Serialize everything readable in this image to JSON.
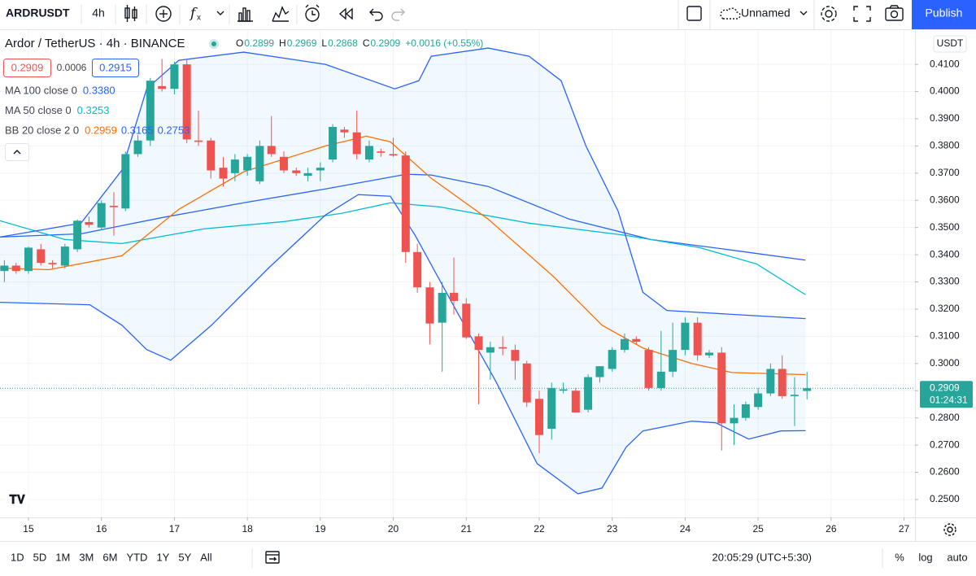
{
  "toolbar": {
    "symbol": "ARDRUSDT",
    "interval": "4h",
    "layout_name": "Unnamed",
    "publish": "Publish"
  },
  "bottom_bar": {
    "ranges": [
      "1D",
      "5D",
      "1M",
      "3M",
      "6M",
      "YTD",
      "1Y",
      "5Y",
      "All"
    ],
    "clock": "20:05:29 (UTC+5:30)",
    "percent": "%",
    "log": "log",
    "auto": "auto"
  },
  "chart_data": {
    "type": "candlestick",
    "title": "Ardor / TetherUS · 4h · BINANCE",
    "ohlc": [
      {
        "key": "O",
        "value": "0.2899"
      },
      {
        "key": "H",
        "value": "0.2969"
      },
      {
        "key": "L",
        "value": "0.2868"
      },
      {
        "key": "C",
        "value": "0.2909"
      }
    ],
    "change": "+0.0016 (+0.55%)",
    "bid": "0.2909",
    "spread": "0.0006",
    "ask": "0.2915",
    "currency": "USDT",
    "last_price": 0.2909,
    "countdown": "01:24:31",
    "up_color": "#26a69a",
    "down_color": "#ef5350",
    "x": [
      14.67,
      14.83,
      15,
      15.17,
      15.33,
      15.5,
      15.67,
      15.83,
      16,
      16.17,
      16.33,
      16.5,
      16.67,
      16.83,
      17,
      17.17,
      17.33,
      17.5,
      17.67,
      17.83,
      18,
      18.17,
      18.33,
      18.5,
      18.67,
      18.83,
      19,
      19.17,
      19.33,
      19.5,
      19.67,
      19.83,
      20,
      20.17,
      20.33,
      20.5,
      20.67,
      20.83,
      21,
      21.17,
      21.33,
      21.5,
      21.67,
      21.83,
      22,
      22.17,
      22.33,
      22.5,
      22.67,
      22.83,
      23,
      23.17,
      23.33,
      23.5,
      23.67,
      23.83,
      24,
      24.17,
      24.33,
      24.5,
      24.67,
      24.83,
      25,
      25.17,
      25.33,
      25.5,
      25.67
    ],
    "open": [
      0.334,
      0.336,
      0.334,
      0.342,
      0.337,
      0.336,
      0.342,
      0.352,
      0.35,
      0.358,
      0.357,
      0.377,
      0.382,
      0.402,
      0.401,
      0.41,
      0.382,
      0.382,
      0.372,
      0.37,
      0.371,
      0.367,
      0.38,
      0.376,
      0.371,
      0.369,
      0.371,
      0.375,
      0.386,
      0.385,
      0.375,
      0.378,
      0.377,
      0.3765,
      0.341,
      0.328,
      0.315,
      0.326,
      0.322,
      0.31,
      0.304,
      0.306,
      0.305,
      0.3,
      0.287,
      0.276,
      0.29,
      0.29,
      0.283,
      0.295,
      0.298,
      0.305,
      0.309,
      0.305,
      0.291,
      0.297,
      0.305,
      0.315,
      0.303,
      0.304,
      0.278,
      0.28,
      0.284,
      0.289,
      0.298,
      0.288,
      0.2899
    ],
    "high": [
      0.338,
      0.337,
      0.343,
      0.344,
      0.338,
      0.344,
      0.353,
      0.354,
      0.36,
      0.363,
      0.378,
      0.384,
      0.405,
      0.412,
      0.411,
      0.412,
      0.393,
      0.383,
      0.376,
      0.377,
      0.377,
      0.382,
      0.391,
      0.378,
      0.372,
      0.372,
      0.374,
      0.388,
      0.387,
      0.393,
      0.382,
      0.379,
      0.383,
      0.378,
      0.344,
      0.33,
      0.33,
      0.339,
      0.324,
      0.311,
      0.308,
      0.31,
      0.307,
      0.301,
      0.29,
      0.293,
      0.293,
      0.291,
      0.296,
      0.299,
      0.306,
      0.311,
      0.31,
      0.306,
      0.312,
      0.315,
      0.317,
      0.317,
      0.305,
      0.306,
      0.285,
      0.286,
      0.291,
      0.3,
      0.303,
      0.295,
      0.2969
    ],
    "low": [
      0.33,
      0.333,
      0.333,
      0.336,
      0.335,
      0.335,
      0.341,
      0.35,
      0.349,
      0.347,
      0.356,
      0.376,
      0.38,
      0.4,
      0.399,
      0.381,
      0.38,
      0.368,
      0.365,
      0.367,
      0.369,
      0.366,
      0.376,
      0.37,
      0.369,
      0.367,
      0.367,
      0.374,
      0.383,
      0.375,
      0.374,
      0.376,
      0.376,
      0.337,
      0.326,
      0.307,
      0.297,
      0.318,
      0.309,
      0.285,
      0.294,
      0.303,
      0.294,
      0.284,
      0.267,
      0.272,
      0.289,
      0.282,
      0.282,
      0.293,
      0.297,
      0.304,
      0.307,
      0.29,
      0.29,
      0.295,
      0.303,
      0.301,
      0.302,
      0.268,
      0.27,
      0.279,
      0.283,
      0.288,
      0.287,
      0.277,
      0.2868
    ],
    "close": [
      0.336,
      0.334,
      0.3426,
      0.337,
      0.3365,
      0.343,
      0.3525,
      0.351,
      0.359,
      0.3575,
      0.377,
      0.382,
      0.404,
      0.401,
      0.41,
      0.3824,
      0.3815,
      0.371,
      0.368,
      0.375,
      0.376,
      0.38,
      0.377,
      0.371,
      0.37,
      0.37,
      0.372,
      0.387,
      0.385,
      0.377,
      0.38,
      0.3775,
      0.3765,
      0.341,
      0.328,
      0.3147,
      0.326,
      0.323,
      0.3096,
      0.305,
      0.306,
      0.3055,
      0.301,
      0.2857,
      0.2737,
      0.291,
      0.2905,
      0.282,
      0.295,
      0.299,
      0.305,
      0.309,
      0.308,
      0.291,
      0.297,
      0.305,
      0.315,
      0.303,
      0.304,
      0.278,
      0.28,
      0.285,
      0.289,
      0.298,
      0.288,
      0.2885,
      0.2909
    ],
    "xlim": [
      14.61,
      27.15
    ],
    "xticks": [
      15,
      16,
      17,
      18,
      19,
      20,
      21,
      22,
      23,
      24,
      25,
      26,
      27
    ],
    "ylim": [
      0.2434,
      0.4226
    ],
    "yticks": [
      {
        "value": 0.25,
        "label": "0.2500"
      },
      {
        "value": 0.26,
        "label": "0.2600"
      },
      {
        "value": 0.27,
        "label": "0.2700"
      },
      {
        "value": 0.28,
        "label": "0.2800"
      },
      {
        "value": 0.29,
        "label": "0.2900"
      },
      {
        "value": 0.3,
        "label": "0.3000"
      },
      {
        "value": 0.31,
        "label": "0.3100"
      },
      {
        "value": 0.32,
        "label": "0.3200"
      },
      {
        "value": 0.33,
        "label": "0.3300"
      },
      {
        "value": 0.34,
        "label": "0.3400"
      },
      {
        "value": 0.35,
        "label": "0.3500"
      },
      {
        "value": 0.36,
        "label": "0.3600"
      },
      {
        "value": 0.37,
        "label": "0.3700"
      },
      {
        "value": 0.38,
        "label": "0.3800"
      },
      {
        "value": 0.39,
        "label": "0.3900"
      },
      {
        "value": 0.4,
        "label": "0.4000"
      },
      {
        "value": 0.41,
        "label": "0.4100"
      }
    ],
    "grid": true,
    "indicators": [
      {
        "label": "MA 100 close 0",
        "value_labels": [
          "0.3380"
        ],
        "colors": [
          "#2962ff"
        ],
        "lines": [
          {
            "x": [
              14.61,
              15.72,
              16.84,
              17.95,
              19.07,
              20.18,
              20.52,
              21.3,
              22.41,
              23.53,
              24.64,
              25.65
            ],
            "values": [
              0.3465,
              0.3477,
              0.3537,
              0.3591,
              0.3642,
              0.3696,
              0.3693,
              0.3651,
              0.3531,
              0.3456,
              0.3417,
              0.338
            ]
          }
        ]
      },
      {
        "label": "MA 50 close 0",
        "value_labels": [
          "0.3253"
        ],
        "colors": [
          "#00bcd4"
        ],
        "lines": [
          {
            "x": [
              14.61,
              15.5,
              16.28,
              17.4,
              18.51,
              19.29,
              19.96,
              20.63,
              21.86,
              23.19,
              24.2,
              24.98,
              25.65
            ],
            "values": [
              0.3525,
              0.3456,
              0.3441,
              0.3495,
              0.3522,
              0.3552,
              0.3591,
              0.3576,
              0.3516,
              0.3471,
              0.3426,
              0.3366,
              0.3253
            ]
          }
        ]
      },
      {
        "label": "BB 20 close 2 0",
        "value_labels": [
          "0.2959",
          "0.3165",
          "0.2753"
        ],
        "colors": [
          "#ff6d00",
          "#2962ff",
          "#2962ff"
        ],
        "fill": "#2196f3",
        "lines": [
          {
            "x": [
              14.61,
              15.28,
              16.28,
              16.62,
              17.06,
              17.95,
              19.07,
              19.63,
              19.96,
              20.52,
              21.3,
              22.19,
              22.86,
              23.42,
              24.09,
              24.64,
              25.65
            ],
            "values": [
              0.3351,
              0.3345,
              0.3396,
              0.3471,
              0.3567,
              0.3705,
              0.38,
              0.3836,
              0.3815,
              0.3681,
              0.3531,
              0.3321,
              0.3141,
              0.3057,
              0.3,
              0.2967,
              0.2959
            ]
          },
          {
            "x": [
              14.61,
              15.72,
              16.28,
              16.62,
              17.06,
              17.95,
              19.07,
              20.02,
              20.35,
              20.52,
              21.3,
              21.86,
              22.3,
              22.64,
              23.08,
              23.42,
              23.75,
              24.31,
              25.65
            ],
            "values": [
              0.3465,
              0.3516,
              0.3711,
              0.401,
              0.4115,
              0.4145,
              0.41,
              0.401,
              0.404,
              0.413,
              0.416,
              0.413,
              0.404,
              0.38,
              0.3561,
              0.3262,
              0.3195,
              0.3186,
              0.3165
            ]
          },
          {
            "x": [
              14.61,
              15.84,
              16.28,
              16.62,
              16.95,
              17.51,
              18.29,
              19.07,
              19.52,
              19.96,
              20.3,
              20.85,
              21.41,
              21.97,
              22.53,
              22.86,
              23.19,
              23.42,
              24.09,
              24.42,
              24.87,
              25.31,
              25.65
            ],
            "values": [
              0.3225,
              0.3216,
              0.3141,
              0.3051,
              0.3012,
              0.3141,
              0.3351,
              0.3546,
              0.3621,
              0.3615,
              0.3471,
              0.3201,
              0.2932,
              0.2632,
              0.2521,
              0.2542,
              0.2692,
              0.2752,
              0.2788,
              0.2782,
              0.2722,
              0.2752,
              0.2753
            ]
          }
        ]
      }
    ]
  }
}
